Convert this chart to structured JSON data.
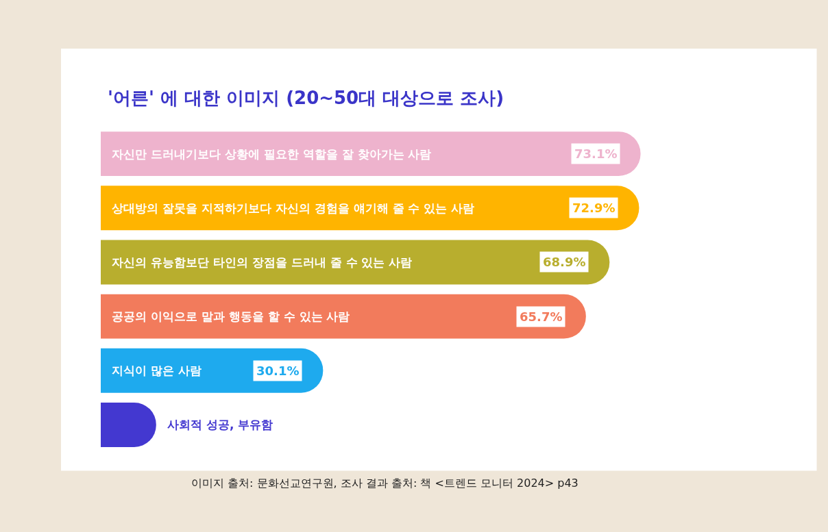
{
  "chart_data": {
    "type": "bar",
    "orientation": "horizontal",
    "title": "'어른' 에 대한 이미지 (20~50대 대상으로 조사)",
    "categories": [
      "자신만 드러내기보다 상황에 필요한 역할을 잘 찾아가는 사람",
      "상대방의 잘못을 지적하기보다 자신의 경험을 얘기해 줄 수 있는 사람",
      "자신의 유능함보단 타인의 장점을 드러내 줄 수 있는 사람",
      "공공의 이익으로 말과 행동을 할 수 있는 사람",
      "지식이 많은 사람",
      "사회적 성공, 부유함"
    ],
    "values": [
      73.1,
      72.9,
      68.9,
      65.7,
      30.1,
      7.5
    ],
    "value_labels": [
      "73.1%",
      "72.9%",
      "68.9%",
      "65.7%",
      "30.1%",
      null
    ],
    "colors": [
      "#eeb3cd",
      "#ffb400",
      "#b8ae2e",
      "#f27b5c",
      "#1eaaee",
      "#4338d0"
    ],
    "tick_labels": false,
    "legend": false,
    "annotations": [
      "이미지 출처: 문화선교연구원, 조사 결과 출처: 책 <트렌드 모니터 2024> p43"
    ]
  }
}
